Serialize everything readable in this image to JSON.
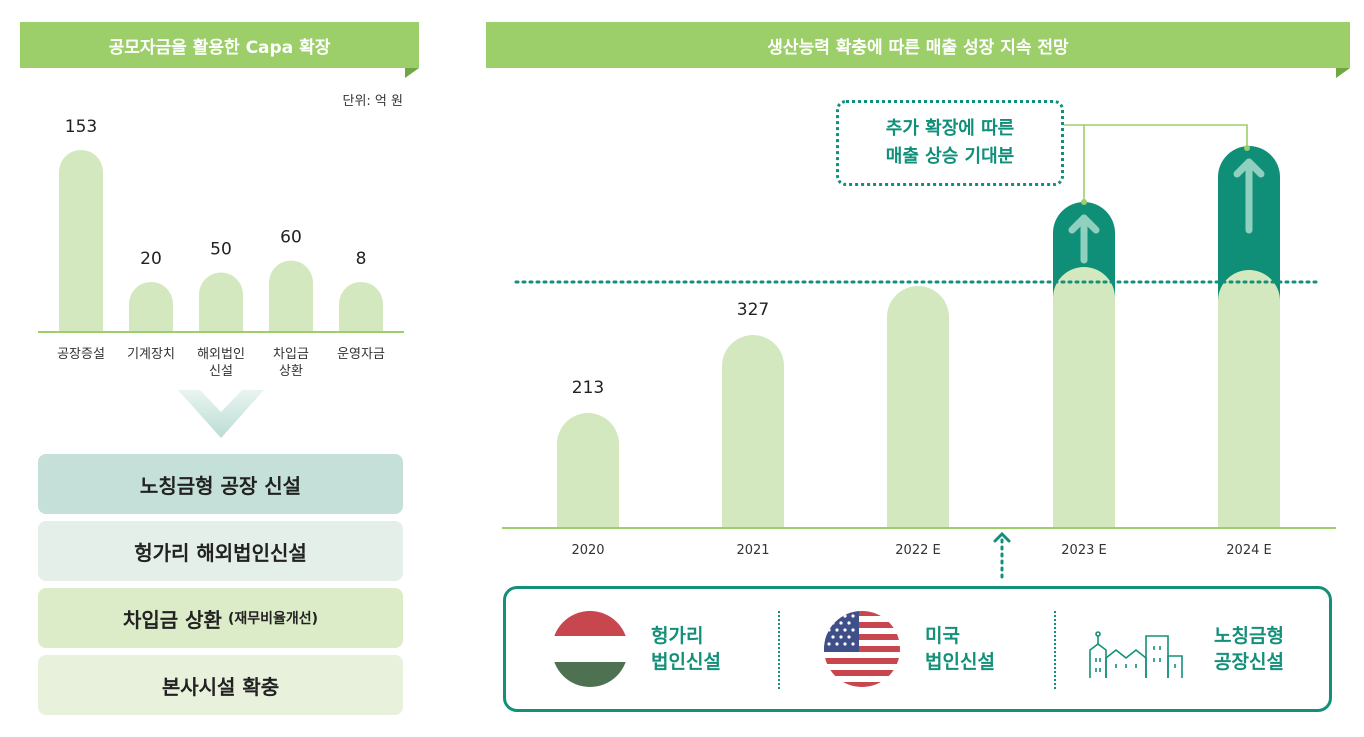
{
  "left_panel": {
    "title": "공모자금을 활용한 Capa 확장",
    "unit": "단위: 억 원"
  },
  "right_panel": {
    "title": "생산능력 확충에 따른 매출 성장 지속 전망",
    "callout": [
      "추가 확장에 따른",
      "매출 상승 기대분"
    ]
  },
  "chart_data": [
    {
      "type": "bar",
      "categories": [
        [
          "공장증설"
        ],
        [
          "기계장치"
        ],
        [
          "해외법인",
          "신설"
        ],
        [
          "차입금",
          "상환"
        ],
        [
          "운영자금"
        ]
      ],
      "values": [
        153,
        20,
        50,
        60,
        8
      ],
      "unit": "단위: 억 원",
      "ylim": [
        0,
        153
      ],
      "grid": false,
      "colors": {
        "bar": "#d4e8bf",
        "baseline": "#9ccf6a"
      }
    },
    {
      "type": "bar",
      "categories": [
        "2020",
        "2021",
        "2022 E",
        "2023 E",
        "2024 E"
      ],
      "values": [
        213,
        327,
        null,
        null,
        null
      ],
      "value_labels": [
        "213",
        "327",
        "",
        "",
        ""
      ],
      "note": "2022 E–2024 E bars unlabeled; 2023 E and 2024 E include a highlighted expected-increase segment above the dotted reference line",
      "grid": false,
      "colors": {
        "bar": "#d4e8bf",
        "highlight": "#0f8f78",
        "baseline": "#9ccf6a",
        "reference": "#14907a"
      }
    }
  ],
  "capa_items": [
    {
      "label": "노칭금형 공장 신설",
      "sub": ""
    },
    {
      "label": "헝가리 해외법인신설",
      "sub": ""
    },
    {
      "label": "차입금 상환",
      "sub": "(재무비율개선)"
    },
    {
      "label": "본사시설 확충",
      "sub": ""
    }
  ],
  "sites": [
    {
      "icon": "hungary-flag-icon",
      "line1": "헝가리",
      "line2": "법인신설"
    },
    {
      "icon": "usa-flag-icon",
      "line1": "미국",
      "line2": "법인신설"
    },
    {
      "icon": "factory-buildings-icon",
      "line1": "노칭금형",
      "line2": "공장신설"
    }
  ]
}
